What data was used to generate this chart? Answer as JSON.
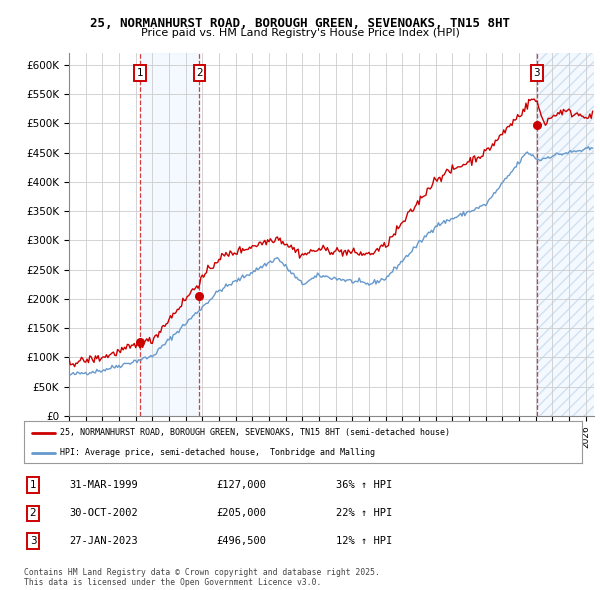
{
  "title_line1": "25, NORMANHURST ROAD, BOROUGH GREEN, SEVENOAKS, TN15 8HT",
  "title_line2": "Price paid vs. HM Land Registry's House Price Index (HPI)",
  "ylim": [
    0,
    620000
  ],
  "yticks": [
    0,
    50000,
    100000,
    150000,
    200000,
    250000,
    300000,
    350000,
    400000,
    450000,
    500000,
    550000,
    600000
  ],
  "ytick_labels": [
    "£0",
    "£50K",
    "£100K",
    "£150K",
    "£200K",
    "£250K",
    "£300K",
    "£350K",
    "£400K",
    "£450K",
    "£500K",
    "£550K",
    "£600K"
  ],
  "xlim_start": 1995.0,
  "xlim_end": 2026.5,
  "sale1_date": 1999.25,
  "sale1_price": 127000,
  "sale1_label": "1",
  "sale2_date": 2002.83,
  "sale2_price": 205000,
  "sale2_label": "2",
  "sale3_date": 2023.07,
  "sale3_price": 496500,
  "sale3_label": "3",
  "red_line_color": "#cc0000",
  "blue_line_color": "#6699cc",
  "shaded_region_color": "#ddeeff",
  "hatch_color": "#c8d8e8",
  "grid_color": "#cccccc",
  "bg_color": "#ffffff",
  "legend_line1": "25, NORMANHURST ROAD, BOROUGH GREEN, SEVENOAKS, TN15 8HT (semi-detached house)",
  "legend_line2": "HPI: Average price, semi-detached house,  Tonbridge and Malling",
  "table_row1_num": "1",
  "table_row1_date": "31-MAR-1999",
  "table_row1_price": "£127,000",
  "table_row1_hpi": "36% ↑ HPI",
  "table_row2_num": "2",
  "table_row2_date": "30-OCT-2002",
  "table_row2_price": "£205,000",
  "table_row2_hpi": "22% ↑ HPI",
  "table_row3_num": "3",
  "table_row3_date": "27-JAN-2023",
  "table_row3_price": "£496,500",
  "table_row3_hpi": "12% ↑ HPI",
  "footer_text": "Contains HM Land Registry data © Crown copyright and database right 2025.\nThis data is licensed under the Open Government Licence v3.0."
}
